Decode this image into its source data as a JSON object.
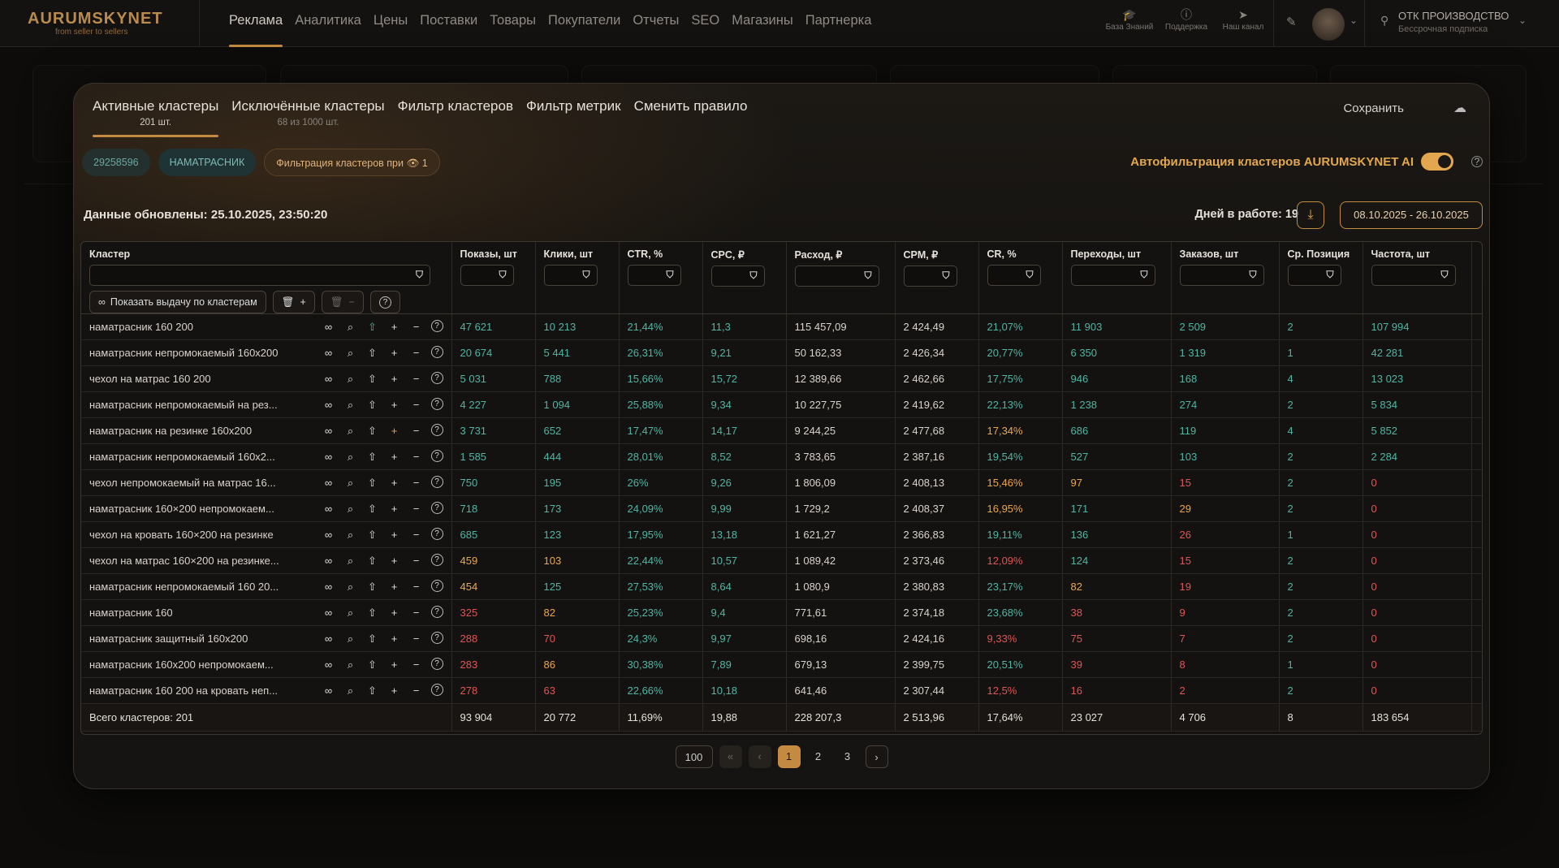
{
  "app": {
    "logo_name": "AURUMSKYNET",
    "logo_tagline": "from seller to sellers",
    "nav": [
      "Реклама",
      "Аналитика",
      "Цены",
      "Поставки",
      "Товары",
      "Покупатели",
      "Отчеты",
      "SEO",
      "Магазины",
      "Партнерка"
    ],
    "tools": [
      "База Знаний",
      "Поддержка",
      "Наш канал"
    ],
    "org_name": "ОТК ПРОИЗВОДСТВО",
    "org_sub": "Бессрочная подписка"
  },
  "modal": {
    "tabs": [
      {
        "label": "Активные кластеры",
        "count": "201 шт."
      },
      {
        "label": "Исключённые кластеры",
        "count": "68 из 1000 шт."
      },
      {
        "label": "Фильтр кластеров",
        "count": ""
      },
      {
        "label": "Фильтр метрик",
        "count": ""
      },
      {
        "label": "Сменить правило",
        "count": ""
      }
    ],
    "save_label": "Сохранить",
    "chips": [
      "29258596",
      "НАМАТРАСНИК",
      "Фильтрация кластеров при 👁 1"
    ],
    "autofilter_label": "Автофильтрация кластеров AURUMSKYNET AI",
    "updated": "Данные обновлены: 25.10.2025, 23:50:20",
    "days": "Дней в работе: 19",
    "date_range": "08.10.2025 - 26.10.2025",
    "show_button": "Показать выдачу по кластерам",
    "columns": [
      "Кластер",
      "Показы, шт",
      "Клики, шт",
      "CTR, %",
      "CPC, ₽",
      "Расход, ₽",
      "CPM, ₽",
      "CR, %",
      "Переходы, шт",
      "Заказов, шт",
      "Ср. Позиция",
      "Частота, шт"
    ],
    "rows": [
      {
        "name": "наматрасник 160 200",
        "v": [
          "47 621",
          "10 213",
          "21,44%",
          "11,3",
          "115 457,09",
          "2 424,49",
          "21,07%",
          "11 903",
          "2 509",
          "2",
          "107 994"
        ],
        "c": [
          "g",
          "g",
          "g",
          "g",
          "w",
          "w",
          "g",
          "g",
          "g",
          "g",
          "g"
        ]
      },
      {
        "name": "наматрасник непромокаемый 160х200",
        "v": [
          "20 674",
          "5 441",
          "26,31%",
          "9,21",
          "50 162,33",
          "2 426,34",
          "20,77%",
          "6 350",
          "1 319",
          "1",
          "42 281"
        ],
        "c": [
          "g",
          "g",
          "g",
          "g",
          "w",
          "w",
          "g",
          "g",
          "g",
          "g",
          "g"
        ]
      },
      {
        "name": "чехол на матрас 160 200",
        "v": [
          "5 031",
          "788",
          "15,66%",
          "15,72",
          "12 389,66",
          "2 462,66",
          "17,75%",
          "946",
          "168",
          "4",
          "13 023"
        ],
        "c": [
          "g",
          "g",
          "g",
          "g",
          "w",
          "w",
          "g",
          "g",
          "g",
          "g",
          "g"
        ]
      },
      {
        "name": "наматрасник непромокаемый на рез...",
        "v": [
          "4 227",
          "1 094",
          "25,88%",
          "9,34",
          "10 227,75",
          "2 419,62",
          "22,13%",
          "1 238",
          "274",
          "2",
          "5 834"
        ],
        "c": [
          "g",
          "g",
          "g",
          "g",
          "w",
          "w",
          "g",
          "g",
          "g",
          "g",
          "g"
        ]
      },
      {
        "name": "наматрасник на резинке 160х200",
        "v": [
          "3 731",
          "652",
          "17,47%",
          "14,17",
          "9 244,25",
          "2 477,68",
          "17,34%",
          "686",
          "119",
          "4",
          "5 852"
        ],
        "c": [
          "g",
          "g",
          "g",
          "g",
          "w",
          "w",
          "o",
          "g",
          "g",
          "g",
          "g"
        ]
      },
      {
        "name": "наматрасник непромокаемый 160х2...",
        "v": [
          "1 585",
          "444",
          "28,01%",
          "8,52",
          "3 783,65",
          "2 387,16",
          "19,54%",
          "527",
          "103",
          "2",
          "2 284"
        ],
        "c": [
          "g",
          "g",
          "g",
          "g",
          "w",
          "w",
          "g",
          "g",
          "g",
          "g",
          "g"
        ]
      },
      {
        "name": "чехол непромокаемый на матрас 16...",
        "v": [
          "750",
          "195",
          "26%",
          "9,26",
          "1 806,09",
          "2 408,13",
          "15,46%",
          "97",
          "15",
          "2",
          "0"
        ],
        "c": [
          "g",
          "g",
          "g",
          "g",
          "w",
          "w",
          "o",
          "o",
          "r",
          "g",
          "r"
        ]
      },
      {
        "name": "наматрасник 160×200 непромокаем...",
        "v": [
          "718",
          "173",
          "24,09%",
          "9,99",
          "1 729,2",
          "2 408,37",
          "16,95%",
          "171",
          "29",
          "2",
          "0"
        ],
        "c": [
          "g",
          "g",
          "g",
          "g",
          "w",
          "w",
          "o",
          "g",
          "o",
          "g",
          "r"
        ]
      },
      {
        "name": "чехол на кровать 160×200 на резинке",
        "v": [
          "685",
          "123",
          "17,95%",
          "13,18",
          "1 621,27",
          "2 366,83",
          "19,11%",
          "136",
          "26",
          "1",
          "0"
        ],
        "c": [
          "g",
          "g",
          "g",
          "g",
          "w",
          "w",
          "g",
          "g",
          "r",
          "g",
          "r"
        ]
      },
      {
        "name": "чехол на матрас 160×200 на резинке...",
        "v": [
          "459",
          "103",
          "22,44%",
          "10,57",
          "1 089,42",
          "2 373,46",
          "12,09%",
          "124",
          "15",
          "2",
          "0"
        ],
        "c": [
          "o",
          "o",
          "g",
          "g",
          "w",
          "w",
          "r",
          "g",
          "r",
          "g",
          "r"
        ]
      },
      {
        "name": "наматрасник непромокаемый 160 20...",
        "v": [
          "454",
          "125",
          "27,53%",
          "8,64",
          "1 080,9",
          "2 380,83",
          "23,17%",
          "82",
          "19",
          "2",
          "0"
        ],
        "c": [
          "o",
          "g",
          "g",
          "g",
          "w",
          "w",
          "g",
          "o",
          "r",
          "g",
          "r"
        ]
      },
      {
        "name": "наматрасник 160",
        "v": [
          "325",
          "82",
          "25,23%",
          "9,4",
          "771,61",
          "2 374,18",
          "23,68%",
          "38",
          "9",
          "2",
          "0"
        ],
        "c": [
          "r",
          "o",
          "g",
          "g",
          "w",
          "w",
          "g",
          "r",
          "r",
          "g",
          "r"
        ]
      },
      {
        "name": "наматрасник защитный 160х200",
        "v": [
          "288",
          "70",
          "24,3%",
          "9,97",
          "698,16",
          "2 424,16",
          "9,33%",
          "75",
          "7",
          "2",
          "0"
        ],
        "c": [
          "r",
          "r",
          "g",
          "g",
          "w",
          "w",
          "r",
          "r",
          "r",
          "g",
          "r"
        ]
      },
      {
        "name": "наматрасник 160х200 непромокаем...",
        "v": [
          "283",
          "86",
          "30,38%",
          "7,89",
          "679,13",
          "2 399,75",
          "20,51%",
          "39",
          "8",
          "1",
          "0"
        ],
        "c": [
          "r",
          "o",
          "g",
          "g",
          "w",
          "w",
          "g",
          "r",
          "r",
          "g",
          "r"
        ]
      },
      {
        "name": "наматрасник 160 200 на кровать неп...",
        "v": [
          "278",
          "63",
          "22,66%",
          "10,18",
          "641,46",
          "2 307,44",
          "12,5%",
          "16",
          "2",
          "2",
          "0"
        ],
        "c": [
          "r",
          "r",
          "g",
          "g",
          "w",
          "w",
          "r",
          "r",
          "r",
          "g",
          "r"
        ]
      }
    ],
    "totals": {
      "label": "Всего кластеров: 201",
      "v": [
        "93 904",
        "20 772",
        "11,69%",
        "19,88",
        "228 207,3",
        "2 513,96",
        "17,64%",
        "23 027",
        "4 706",
        "8",
        "183 654"
      ]
    },
    "pager": {
      "size": "100",
      "pages": [
        "1",
        "2",
        "3"
      ]
    }
  }
}
